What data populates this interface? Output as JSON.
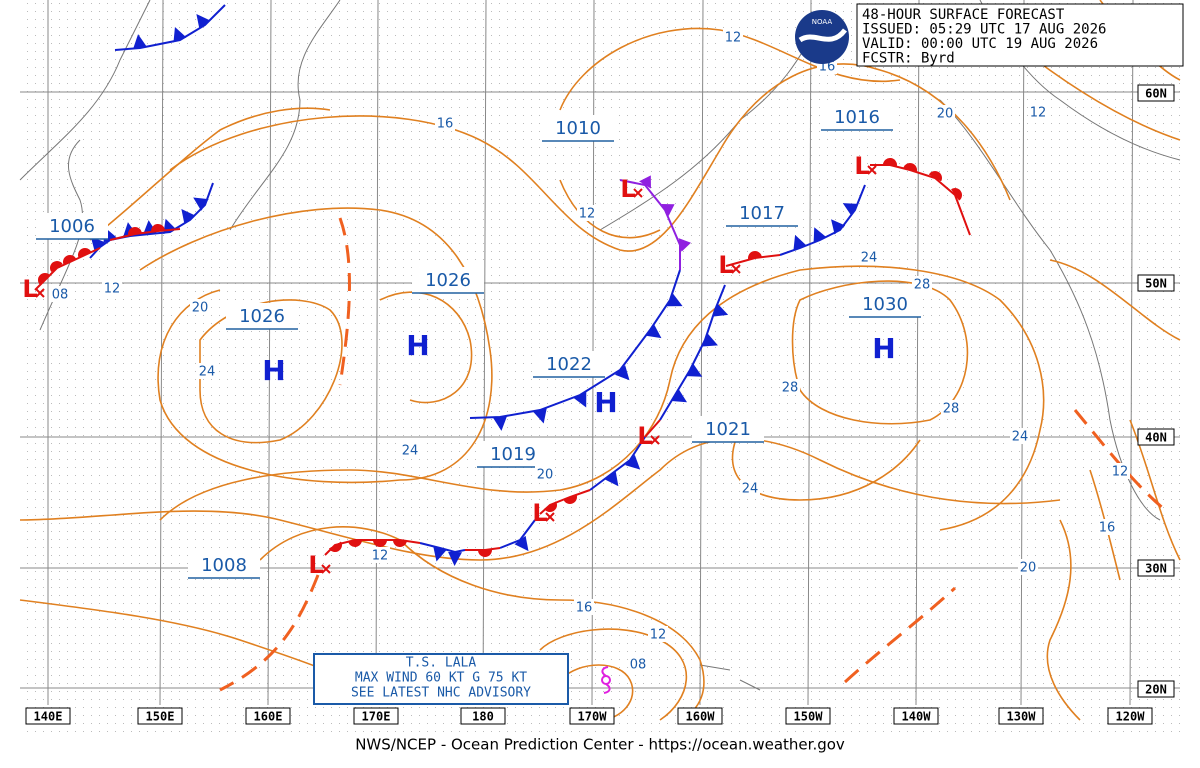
{
  "header": {
    "logo": "NOAA",
    "lines": [
      "48-HOUR SURFACE FORECAST",
      "ISSUED: 05:29 UTC 17 AUG 2026",
      "VALID:  00:00 UTC 19 AUG 2026",
      "FCSTR:  Byrd"
    ]
  },
  "latitudes": [
    "60N",
    "50N",
    "40N",
    "30N",
    "20N"
  ],
  "longitudes": [
    "140E",
    "150E",
    "160E",
    "170E",
    "180",
    "170W",
    "160W",
    "150W",
    "140W",
    "130W",
    "120W"
  ],
  "pressure_centers": [
    "1006",
    "1026",
    "1026",
    "1010",
    "1016",
    "1017",
    "1022",
    "1030",
    "1021",
    "1019",
    "1008"
  ],
  "highs": [
    "H",
    "H",
    "H",
    "H"
  ],
  "lows": [
    "L",
    "L",
    "L",
    "L",
    "L",
    "L",
    "L"
  ],
  "isobar_labels": [
    "16",
    "12",
    "16",
    "20",
    "12",
    "12",
    "08",
    "12",
    "20",
    "24",
    "24",
    "28",
    "28",
    "28",
    "24",
    "20",
    "24",
    "24",
    "12",
    "16",
    "12",
    "20",
    "16",
    "12",
    "08"
  ],
  "storm": {
    "lines": [
      "T.S. LALA",
      "MAX WIND 60 KT G 75 KT",
      "SEE LATEST NHC ADVISORY"
    ]
  },
  "footer": "NWS/NCEP - Ocean Prediction Center - https://ocean.weather.gov"
}
